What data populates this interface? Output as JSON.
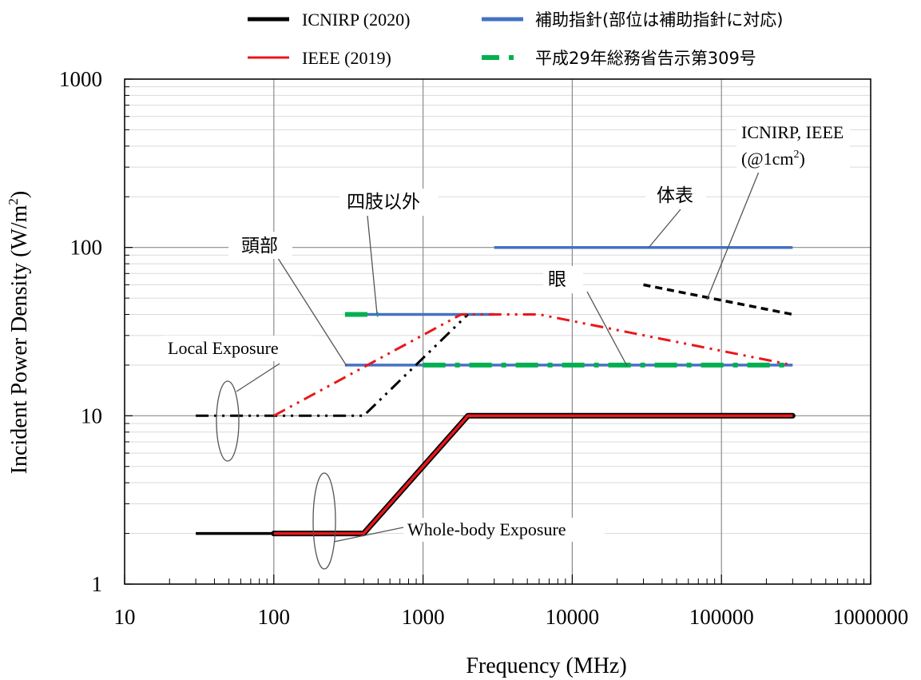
{
  "chart_data": {
    "type": "line",
    "xlabel": "Frequency  (MHz)",
    "ylabel_main": "Incident  Power Density (W/m",
    "ylabel_sup": "2",
    "ylabel_close": ")",
    "x_scale": "log",
    "y_scale": "log",
    "xlim": [
      10,
      1000000
    ],
    "ylim": [
      1,
      1000
    ],
    "x_ticks": [
      {
        "value": 10,
        "label": "10"
      },
      {
        "value": 100,
        "label": "100"
      },
      {
        "value": 1000,
        "label": "1000"
      },
      {
        "value": 10000,
        "label": "10000"
      },
      {
        "value": 100000,
        "label": "100000"
      },
      {
        "value": 1000000,
        "label": "1000000"
      }
    ],
    "y_ticks": [
      {
        "value": 1,
        "label": "1"
      },
      {
        "value": 10,
        "label": "10"
      },
      {
        "value": 100,
        "label": "100"
      },
      {
        "value": 1000,
        "label": "1000"
      }
    ],
    "grid": "major and minor",
    "legend_position": "top",
    "legend": [
      {
        "label": "ICNIRP (2020)",
        "color": "#000000",
        "style": "solid"
      },
      {
        "label": "IEEE (2019)",
        "color": "#e8171b",
        "style": "solid"
      },
      {
        "label": "補助指針(部位は補助指針に対応)",
        "color": "#4472c4",
        "style": "solid"
      },
      {
        "label": "平成29年総務省告示第309号",
        "color": "#00b050",
        "style": "dash-dot"
      }
    ],
    "series": [
      {
        "name": "ICNIRP (2020)",
        "group": "whole-body",
        "color": "#000000",
        "style": "solid",
        "x": [
          30,
          400,
          2000,
          300000
        ],
        "y": [
          2,
          2,
          10,
          10
        ]
      },
      {
        "name": "IEEE (2019)",
        "group": "whole-body",
        "color": "#e8171b",
        "style": "solid-outlined",
        "x": [
          100,
          400,
          2000,
          300000
        ],
        "y": [
          2,
          2,
          10,
          10
        ]
      },
      {
        "name": "ICNIRP (2020)",
        "group": "local",
        "color": "#000000",
        "style": "dash-dot-dot",
        "x": [
          30,
          400,
          2000
        ],
        "y": [
          10,
          10,
          40
        ]
      },
      {
        "name": "IEEE (2019)",
        "group": "local",
        "color": "#e8171b",
        "style": "dash-dot-dot",
        "x": [
          100,
          1800,
          6000,
          300000
        ],
        "y": [
          10,
          40,
          40,
          20
        ]
      },
      {
        "name": "ICNIRP, IEEE (@1cm2)",
        "group": "local",
        "color": "#000000",
        "style": "dashed",
        "x": [
          30000,
          300000
        ],
        "y": [
          60,
          40
        ]
      },
      {
        "name": "補助指針 体表",
        "color": "#4472c4",
        "style": "solid",
        "x": [
          3000,
          300000
        ],
        "y": [
          100,
          100
        ]
      },
      {
        "name": "補助指針 四肢以外",
        "color": "#4472c4",
        "style": "solid",
        "x": [
          300,
          3000
        ],
        "y": [
          40,
          40
        ]
      },
      {
        "name": "補助指針 頭部・眼",
        "color": "#4472c4",
        "style": "solid",
        "x": [
          300,
          300000
        ],
        "y": [
          20,
          20
        ]
      },
      {
        "name": "平成29年総務省告示第309号 四肢以外",
        "color": "#00b050",
        "style": "dash-dot",
        "x": [
          300,
          500
        ],
        "y": [
          40,
          40
        ]
      },
      {
        "name": "平成29年総務省告示第309号 頭部・眼",
        "color": "#00b050",
        "style": "dash-dot",
        "x": [
          1000,
          300000
        ],
        "y": [
          20,
          20
        ]
      }
    ],
    "annotations": [
      {
        "key": "local_exposure",
        "text": "Local Exposure"
      },
      {
        "key": "whole_body",
        "text": "Whole-body Exposure"
      },
      {
        "key": "head",
        "text": "頭部"
      },
      {
        "key": "limbs",
        "text": "四肢以外"
      },
      {
        "key": "body_surface",
        "text": "体表"
      },
      {
        "key": "eye",
        "text": "眼"
      },
      {
        "key": "icnirp_ieee_1",
        "text": "ICNIRP, IEEE"
      },
      {
        "key": "icnirp_ieee_2_pre",
        "text": "(@1cm"
      },
      {
        "key": "icnirp_ieee_2_sup",
        "text": "2"
      },
      {
        "key": "icnirp_ieee_2_post",
        "text": ")"
      }
    ]
  }
}
